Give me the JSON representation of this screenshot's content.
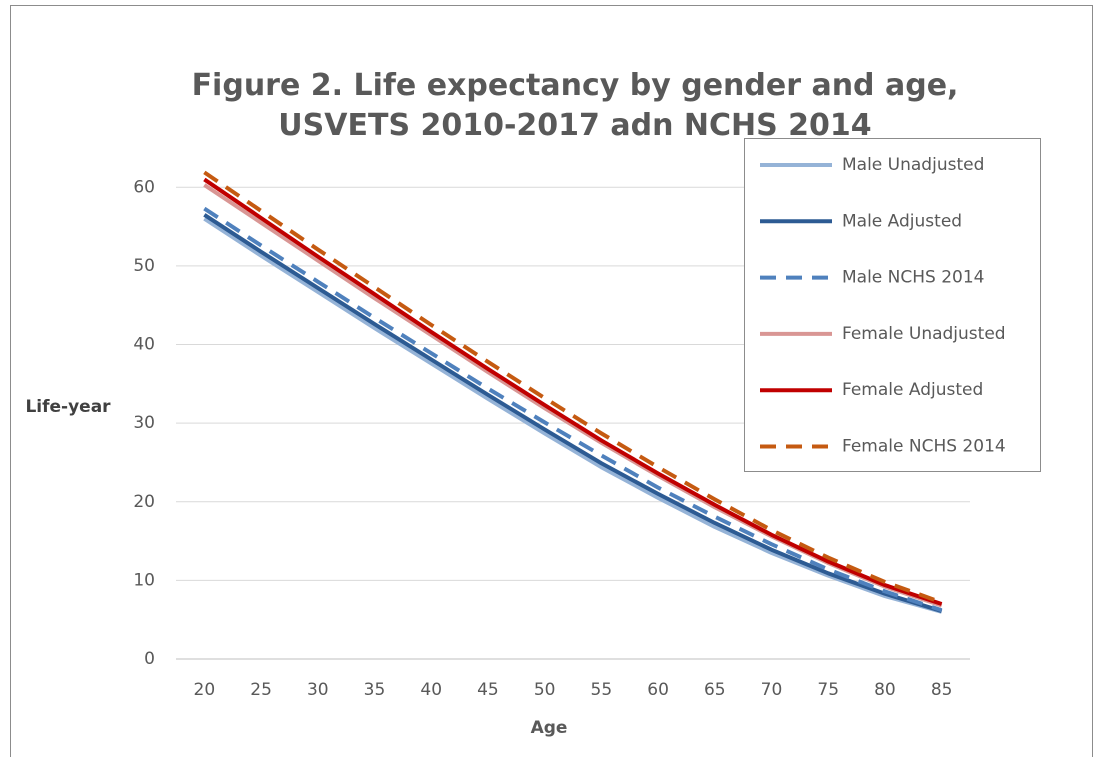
{
  "chart_data": {
    "type": "line",
    "title": "Figure 2. Life expectancy by gender and age, USVETS 2010-2017 adn NCHS 2014",
    "x_label": "Age",
    "y_label": "Life-year",
    "categories": [
      "20",
      "25",
      "30",
      "35",
      "40",
      "45",
      "50",
      "55",
      "60",
      "65",
      "70",
      "75",
      "80",
      "85"
    ],
    "series": [
      {
        "name": "Male Unadjusted",
        "color": "#95b3d7",
        "dash": false,
        "values": [
          56.0,
          51.3,
          46.7,
          42.1,
          37.6,
          33.1,
          28.7,
          24.4,
          20.5,
          16.8,
          13.5,
          10.6,
          8.0,
          6.0
        ]
      },
      {
        "name": "Male Adjusted",
        "color": "#2d5b93",
        "dash": false,
        "values": [
          56.5,
          51.8,
          47.2,
          42.6,
          38.1,
          33.6,
          29.2,
          24.9,
          21.0,
          17.3,
          13.9,
          10.9,
          8.3,
          6.1
        ]
      },
      {
        "name": "Male NCHS 2014",
        "color": "#4f81bd",
        "dash": true,
        "values": [
          57.3,
          52.6,
          48.0,
          43.4,
          38.9,
          34.4,
          30.1,
          25.9,
          21.8,
          18.1,
          14.6,
          11.4,
          8.6,
          6.2
        ]
      },
      {
        "name": "Female Unadjusted",
        "color": "#d99694",
        "dash": false,
        "values": [
          60.3,
          55.5,
          50.7,
          45.9,
          41.2,
          36.5,
          31.9,
          27.5,
          23.3,
          19.3,
          15.6,
          12.2,
          9.2,
          6.8
        ]
      },
      {
        "name": "Female Adjusted",
        "color": "#c00000",
        "dash": false,
        "values": [
          61.0,
          56.1,
          51.2,
          46.4,
          41.6,
          36.9,
          32.3,
          27.8,
          23.6,
          19.6,
          15.8,
          12.4,
          9.4,
          7.0
        ]
      },
      {
        "name": "Female NCHS 2014",
        "color": "#c55a11",
        "dash": true,
        "values": [
          61.9,
          57.0,
          52.1,
          47.3,
          42.5,
          37.8,
          33.2,
          28.7,
          24.4,
          20.3,
          16.4,
          12.9,
          9.8,
          7.2
        ]
      }
    ],
    "ylim": [
      0,
      65
    ],
    "yticks": [
      0,
      10,
      20,
      30,
      40,
      50,
      60
    ],
    "grid": true,
    "legend": "right"
  }
}
